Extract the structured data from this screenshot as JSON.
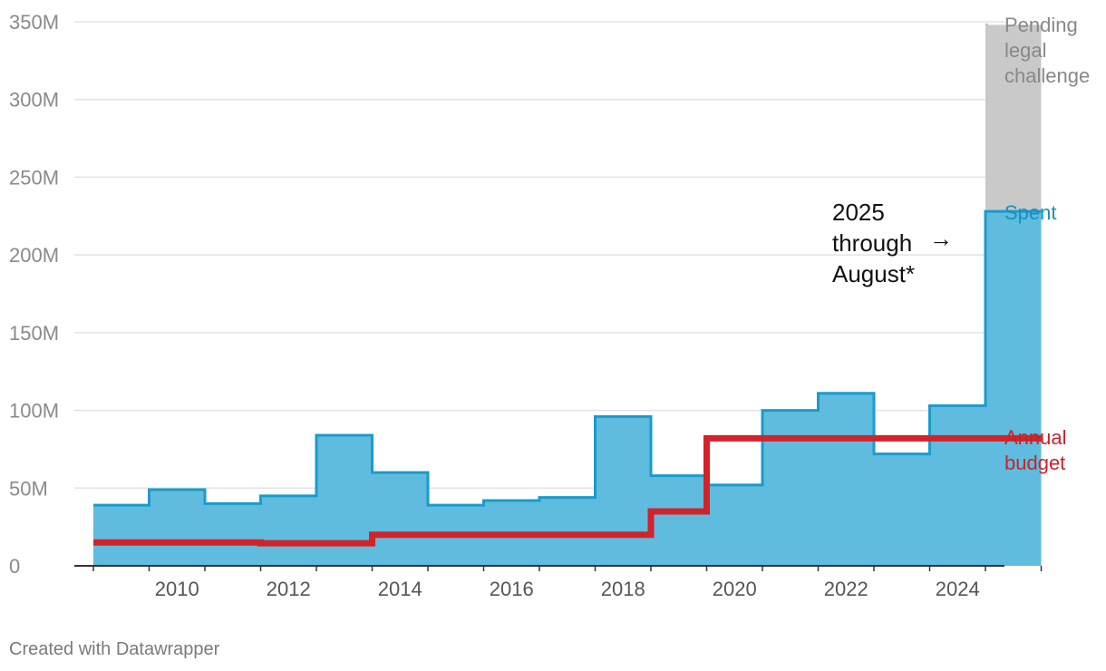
{
  "chart_data": {
    "type": "area",
    "x_type": "year-step",
    "ylim": [
      0,
      350000000
    ],
    "yticks": [
      0,
      50000000,
      100000000,
      150000000,
      200000000,
      250000000,
      300000000,
      350000000
    ],
    "ytick_labels": [
      "0",
      "50M",
      "100M",
      "150M",
      "200M",
      "250M",
      "300M",
      "350M"
    ],
    "xtick_labels": [
      "2010",
      "2012",
      "2014",
      "2016",
      "2018",
      "2020",
      "2022",
      "2024"
    ],
    "grid": true,
    "series": [
      {
        "name": "Spent",
        "color": "#1a9bcb",
        "fill": "#5fbcde",
        "x": [
          2009,
          2010,
          2011,
          2012,
          2013,
          2014,
          2015,
          2016,
          2017,
          2018,
          2019,
          2020,
          2021,
          2022,
          2023,
          2024,
          2025
        ],
        "values": [
          39000000,
          49000000,
          40000000,
          45000000,
          84000000,
          60000000,
          39000000,
          42000000,
          44000000,
          96000000,
          58000000,
          52000000,
          100000000,
          111000000,
          72000000,
          103000000,
          228000000
        ]
      },
      {
        "name": "Pending legal challenge",
        "color": "#c9c9c9",
        "x": [
          2025
        ],
        "values": [
          120000000
        ]
      },
      {
        "name": "Annual budget",
        "color": "#d42229",
        "x": [
          2009,
          2010,
          2011,
          2012,
          2013,
          2014,
          2015,
          2016,
          2017,
          2018,
          2019,
          2020,
          2021,
          2022,
          2023,
          2024,
          2025
        ],
        "values": [
          15000000,
          15000000,
          15000000,
          14500000,
          14500000,
          20000000,
          20000000,
          20000000,
          20000000,
          20000000,
          35000000,
          82000000,
          82000000,
          82000000,
          82000000,
          82000000,
          82000000
        ]
      }
    ],
    "labels": {
      "pending": [
        "Pending",
        "legal",
        "challenge"
      ],
      "spent": "Spent",
      "budget": [
        "Annual",
        "budget"
      ]
    },
    "annotation": {
      "lines": [
        "2025",
        "through",
        "August*"
      ],
      "arrow": "→"
    }
  },
  "footer": {
    "credit": "Created with Datawrapper"
  }
}
